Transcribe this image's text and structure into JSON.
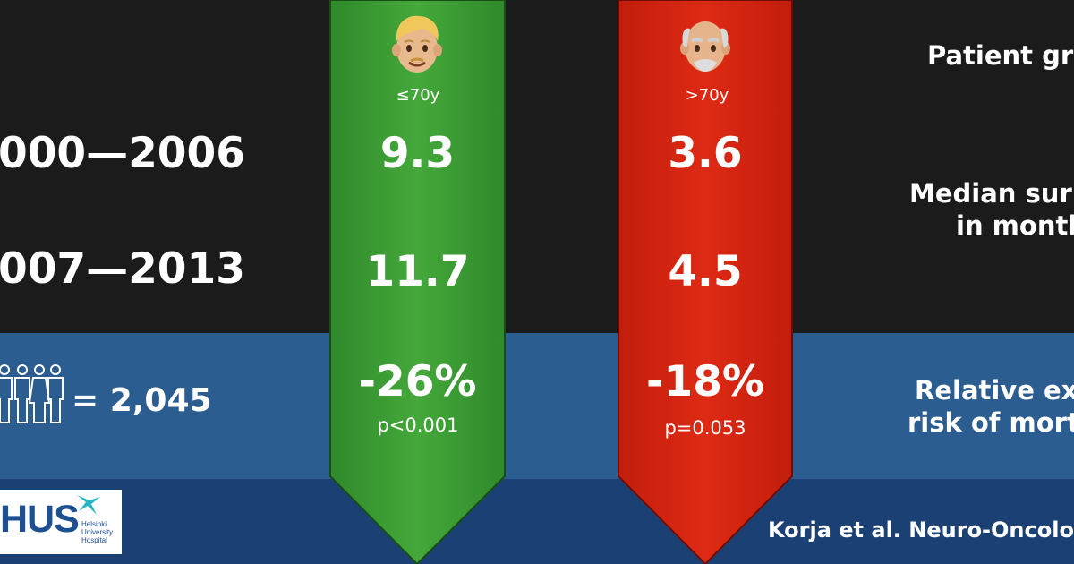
{
  "header": {
    "patient_group_label": "Patient gro"
  },
  "periods": [
    {
      "label": "000—2006"
    },
    {
      "label": "007—2013"
    }
  ],
  "groups": [
    {
      "age_label": "≤70y",
      "face_icon": "young-man-face-icon",
      "median_2000_2006": "9.3",
      "median_2007_2013": "11.7",
      "relative_risk": "-26%",
      "p_value": "p<0.001",
      "color": "#3a9a32"
    },
    {
      "age_label": ">70y",
      "face_icon": "old-man-face-icon",
      "median_2000_2006": "3.6",
      "median_2007_2013": "4.5",
      "relative_risk": "-18%",
      "p_value": "p=0.053",
      "color": "#d32310"
    }
  ],
  "row_labels": {
    "median_line1": "Median sur",
    "median_line2": "in month",
    "risk_line1": "Relative ex",
    "risk_line2": "risk of mort"
  },
  "patients": {
    "count_text": "= 2,045",
    "icon": "people-icon"
  },
  "footer": {
    "logo_text": "HUS",
    "logo_sub1": "Helsinki",
    "logo_sub2": "University",
    "logo_sub3": "Hospital",
    "reference": "Korja et al. Neuro-Oncolog"
  }
}
